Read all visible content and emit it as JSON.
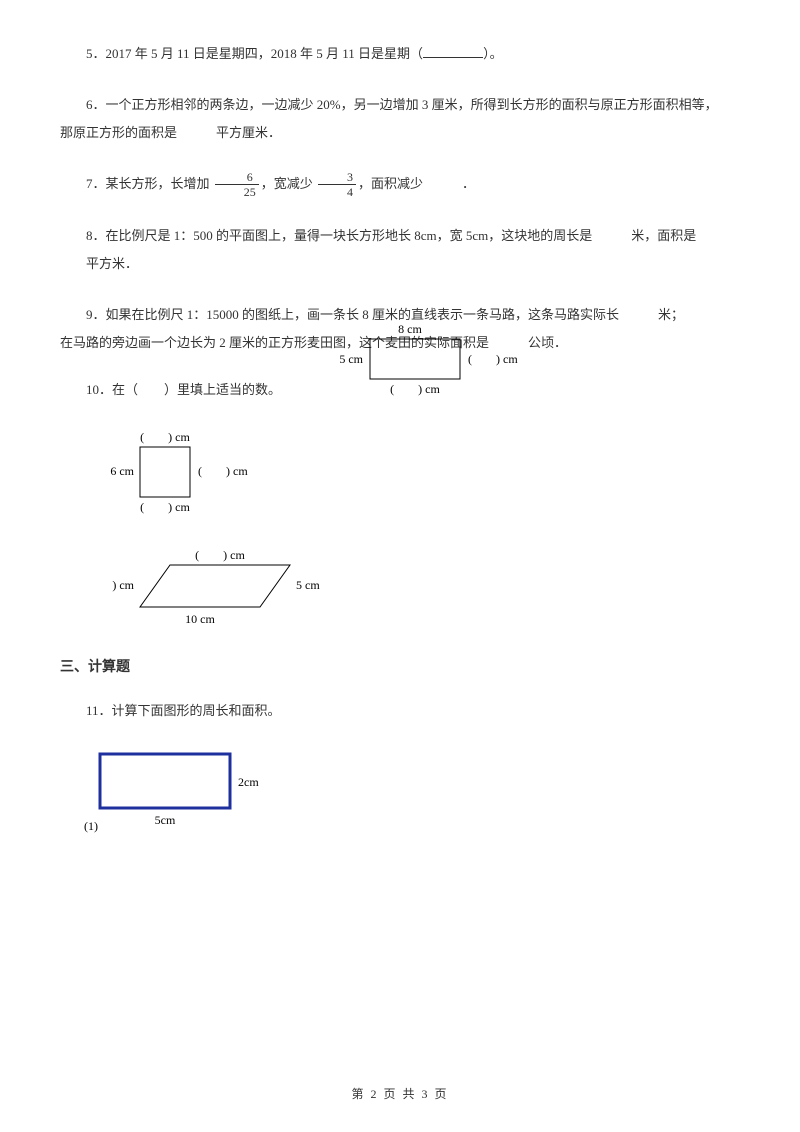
{
  "q5": {
    "num": "5．",
    "text_a": "2017 年 5 月 11 日是星期四，2018 年 5 月 11 日是星期（",
    "text_b": "）。"
  },
  "q6": {
    "num": "6．",
    "line1": "一个正方形相邻的两条边，一边减少 20%，另一边增加 3 厘米，所得到长方形的面积与原正方形面积相等，",
    "line2": "那原正方形的面积是　　　平方厘米．"
  },
  "q7": {
    "num": "7．",
    "pre": "某长方形，长增加",
    "f1_num": "6",
    "f1_den": "25",
    "mid": "，宽减少",
    "f2_num": "3",
    "f2_den": "4",
    "post": "，面积减少　　　．"
  },
  "q8": {
    "num": "8．",
    "line1": "在比例尺是 1：500 的平面图上，量得一块长方形地长 8cm，宽 5cm，这块地的周长是　　　米，面积是",
    "line2": "　　平方米．"
  },
  "q9": {
    "num": "9．",
    "line1": "如果在比例尺 1：15000 的图纸上，画一条长 8 厘米的直线表示一条马路，这条马路实际长　　　米；",
    "line2": "在马路的旁边画一个边长为 2 厘米的正方形麦田图，这个麦田的实际面积是　　　公顷．"
  },
  "q10": {
    "num": "10．",
    "text": "在（　　）里填上适当的数。",
    "fig1_top": "8 cm",
    "fig1_left": "5 cm",
    "fig1_right": "(　　) cm",
    "fig1_bottom": "(　　) cm",
    "fig2_top": "(　　) cm",
    "fig2_left": "6 cm",
    "fig2_right": "(　　) cm",
    "fig2_bottom": "(　　) cm",
    "fig3_top": "(　　) cm",
    "fig3_left": "(　　) cm",
    "fig3_right": "5 cm",
    "fig3_bottom": "10 cm"
  },
  "section3": "三、计算题",
  "q11": {
    "num": "11．",
    "text": "计算下面图形的周长和面积。",
    "width_label": "5cm",
    "height_label": "2cm",
    "sub": "(1)",
    "rect_color": "#1e2f9e",
    "rect_w": 130,
    "rect_h": 54
  },
  "footer": "第 2 页 共 3 页"
}
